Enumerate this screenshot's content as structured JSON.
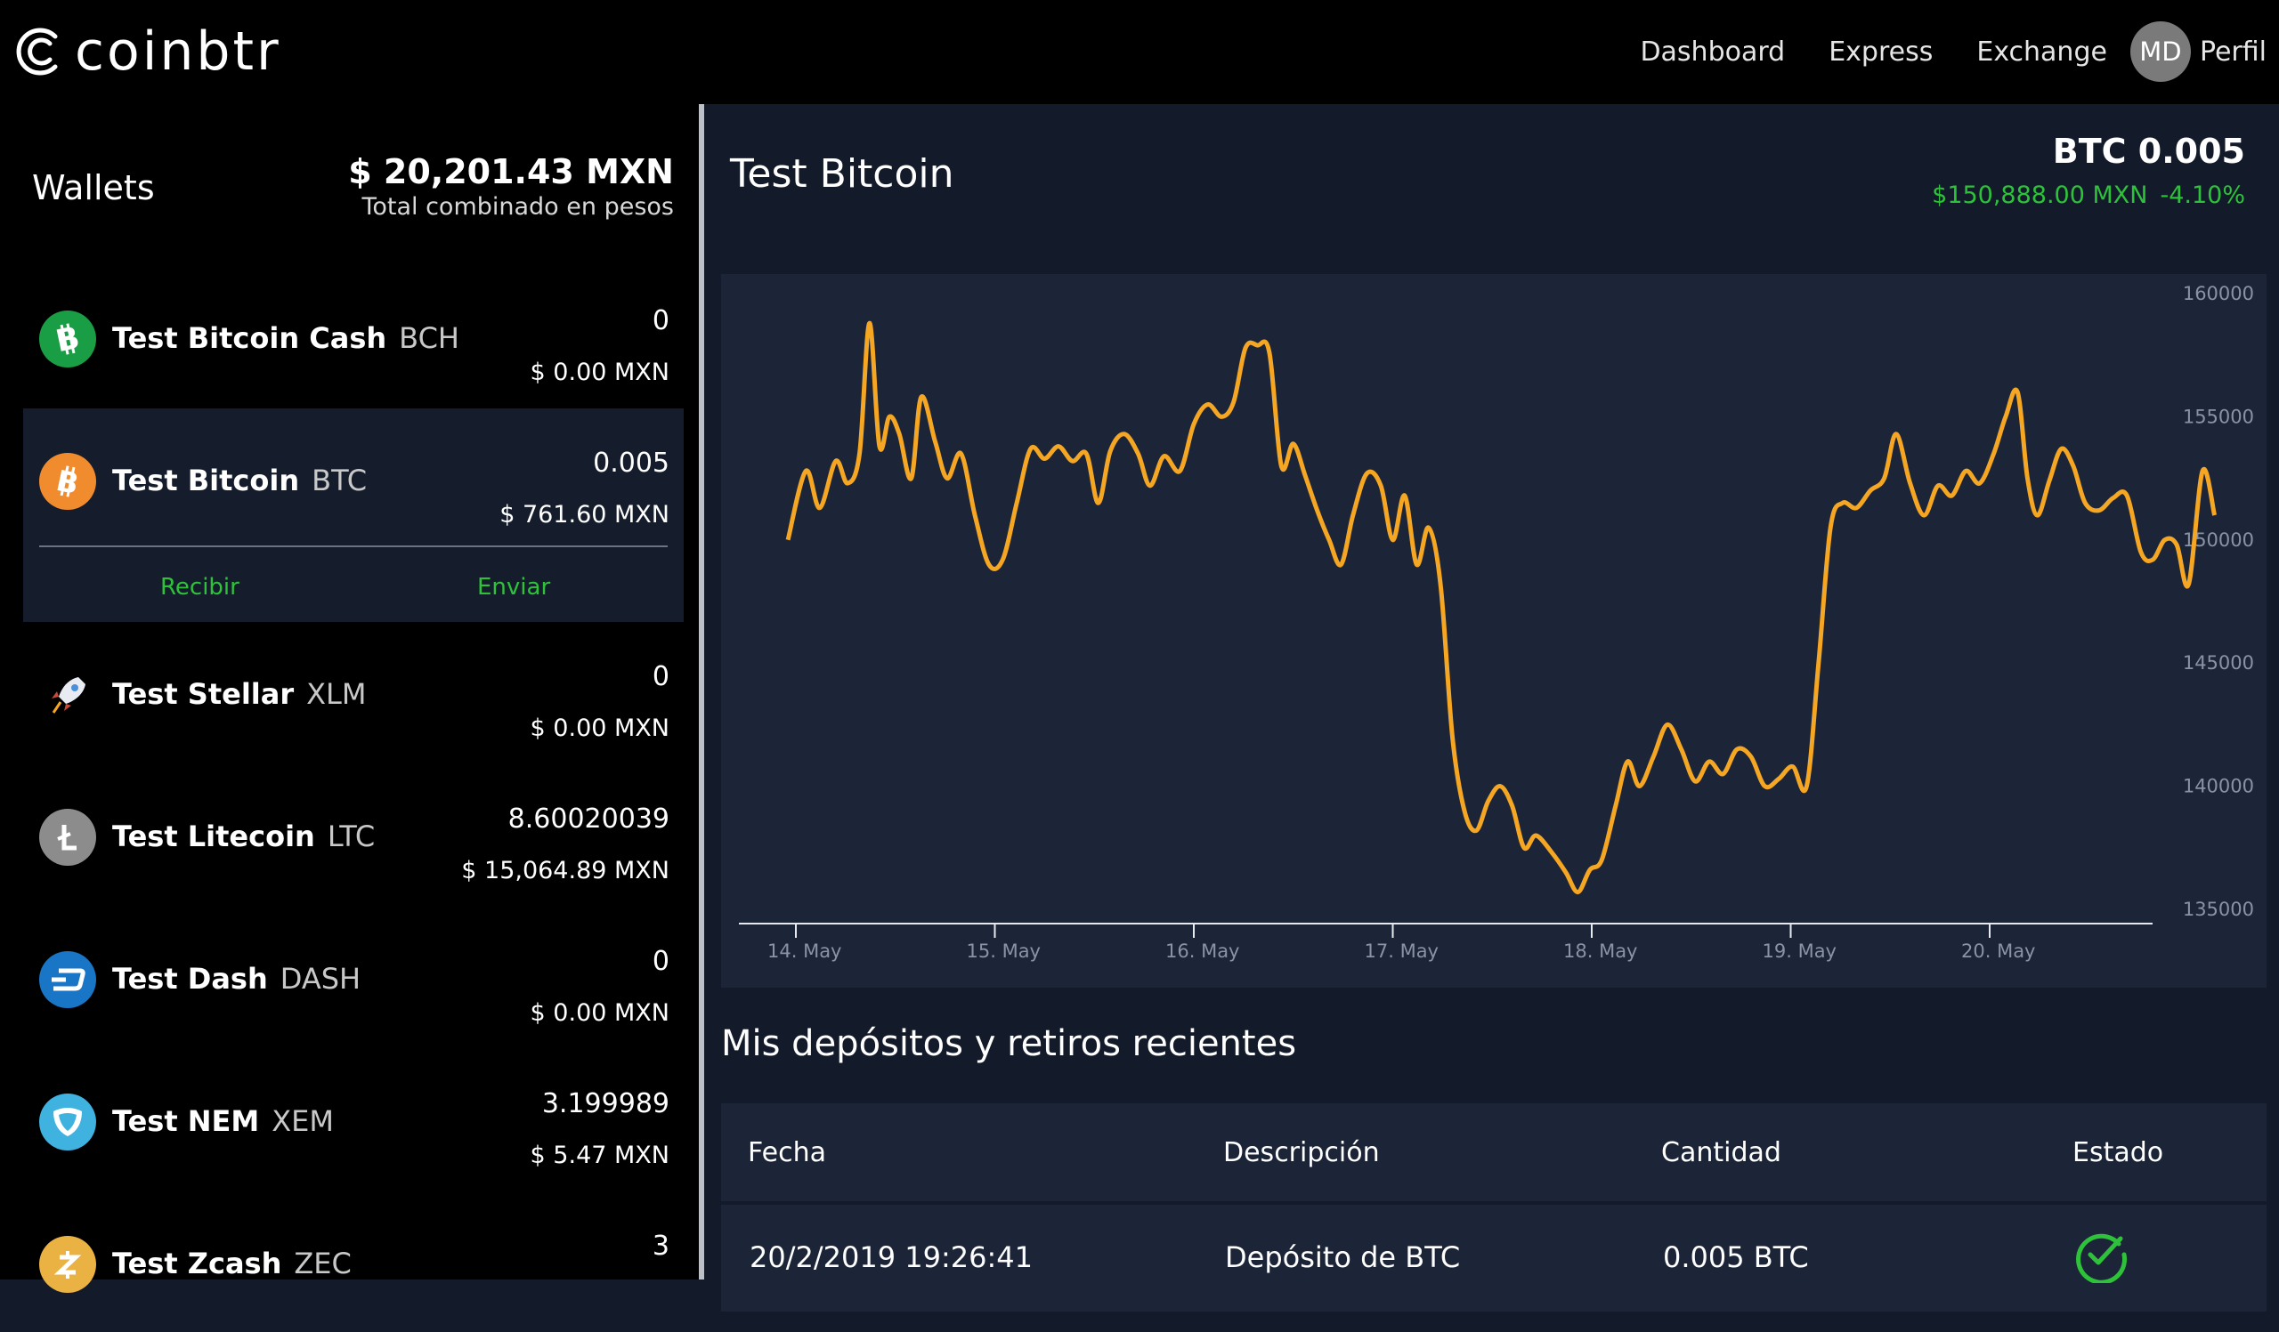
{
  "app": {
    "logo_text": "coinbtr"
  },
  "nav": {
    "items": [
      "Dashboard",
      "Express",
      "Exchange"
    ],
    "avatar_initials": "MD",
    "profile_label": "Perfil"
  },
  "sidebar": {
    "title": "Wallets",
    "total": "$ 20,201.43 MXN",
    "total_caption": "Total combinado en pesos",
    "wallets": [
      {
        "name": "Test Bitcoin Cash",
        "symbol": "BCH",
        "amount": "0",
        "fiat": "$ 0.00 MXN",
        "icon": "bitcoin-cash-icon",
        "color": "#1a9e45"
      },
      {
        "name": "Test Bitcoin",
        "symbol": "BTC",
        "amount": "0.005",
        "fiat": "$ 761.60 MXN",
        "icon": "bitcoin-icon",
        "color": "#f08c2e",
        "actions": [
          "Recibir",
          "Enviar"
        ]
      },
      {
        "name": "Test Stellar",
        "symbol": "XLM",
        "amount": "0",
        "fiat": "$ 0.00 MXN",
        "icon": "stellar-rocket-icon",
        "color": "#000000"
      },
      {
        "name": "Test Litecoin",
        "symbol": "LTC",
        "amount": "8.60020039",
        "fiat": "$ 15,064.89 MXN",
        "icon": "litecoin-icon",
        "color": "#8c8c8c"
      },
      {
        "name": "Test Dash",
        "symbol": "DASH",
        "amount": "0",
        "fiat": "$ 0.00 MXN",
        "icon": "dash-icon",
        "color": "#1976c6"
      },
      {
        "name": "Test NEM",
        "symbol": "XEM",
        "amount": "3.199989",
        "fiat": "$ 5.47 MXN",
        "icon": "nem-icon",
        "color": "#3fb2e0"
      },
      {
        "name": "Test Zcash",
        "symbol": "ZEC",
        "amount": "3",
        "fiat": "",
        "icon": "zcash-icon",
        "color": "#e9b243"
      }
    ]
  },
  "main": {
    "title": "Test Bitcoin",
    "coin_amount": "BTC 0.005",
    "coin_price": "$150,888.00 MXN",
    "coin_change": "-4.10%",
    "positive_color": "#2ec23a",
    "line_color": "#f5a623"
  },
  "chart_data": {
    "type": "line",
    "title": "",
    "xlabel": "",
    "ylabel": "",
    "ylim": [
      135000,
      160000
    ],
    "yticks": [
      160000,
      155000,
      150000,
      145000,
      140000,
      135000
    ],
    "xlim": [
      0,
      7.1
    ],
    "xticks": [
      0,
      1,
      2,
      3,
      4,
      5,
      6
    ],
    "xtick_labels": [
      "14. May",
      "15. May",
      "16. May",
      "17. May",
      "18. May",
      "19. May",
      "20. May"
    ],
    "grid": false,
    "series": [
      {
        "values": [
          [
            -0.04,
            150000
          ],
          [
            0.05,
            152800
          ],
          [
            0.12,
            151300
          ],
          [
            0.2,
            153200
          ],
          [
            0.26,
            152300
          ],
          [
            0.32,
            153500
          ],
          [
            0.37,
            158800
          ],
          [
            0.42,
            153800
          ],
          [
            0.47,
            155000
          ],
          [
            0.52,
            154300
          ],
          [
            0.58,
            152500
          ],
          [
            0.63,
            155800
          ],
          [
            0.7,
            154000
          ],
          [
            0.76,
            152500
          ],
          [
            0.83,
            153500
          ],
          [
            0.9,
            151000
          ],
          [
            0.97,
            149000
          ],
          [
            1.04,
            149200
          ],
          [
            1.11,
            151500
          ],
          [
            1.18,
            153700
          ],
          [
            1.25,
            153300
          ],
          [
            1.32,
            153800
          ],
          [
            1.39,
            153200
          ],
          [
            1.46,
            153500
          ],
          [
            1.52,
            151500
          ],
          [
            1.58,
            153600
          ],
          [
            1.65,
            154300
          ],
          [
            1.72,
            153500
          ],
          [
            1.78,
            152200
          ],
          [
            1.85,
            153400
          ],
          [
            1.93,
            152800
          ],
          [
            2.0,
            154700
          ],
          [
            2.07,
            155500
          ],
          [
            2.14,
            155000
          ],
          [
            2.2,
            155600
          ],
          [
            2.26,
            157800
          ],
          [
            2.32,
            157900
          ],
          [
            2.38,
            157600
          ],
          [
            2.44,
            153000
          ],
          [
            2.5,
            153900
          ],
          [
            2.56,
            152600
          ],
          [
            2.62,
            151200
          ],
          [
            2.68,
            150000
          ],
          [
            2.74,
            149000
          ],
          [
            2.8,
            151000
          ],
          [
            2.87,
            152700
          ],
          [
            2.94,
            152200
          ],
          [
            3.0,
            150000
          ],
          [
            3.06,
            151800
          ],
          [
            3.12,
            149000
          ],
          [
            3.18,
            150500
          ],
          [
            3.24,
            148200
          ],
          [
            3.3,
            142000
          ],
          [
            3.36,
            139000
          ],
          [
            3.42,
            138200
          ],
          [
            3.48,
            139400
          ],
          [
            3.54,
            140000
          ],
          [
            3.6,
            139200
          ],
          [
            3.66,
            137500
          ],
          [
            3.72,
            138000
          ],
          [
            3.8,
            137300
          ],
          [
            3.87,
            136500
          ],
          [
            3.93,
            135700
          ],
          [
            3.99,
            136600
          ],
          [
            4.05,
            137000
          ],
          [
            4.12,
            139200
          ],
          [
            4.18,
            141000
          ],
          [
            4.24,
            140000
          ],
          [
            4.31,
            141200
          ],
          [
            4.38,
            142500
          ],
          [
            4.45,
            141500
          ],
          [
            4.52,
            140200
          ],
          [
            4.59,
            141000
          ],
          [
            4.66,
            140500
          ],
          [
            4.73,
            141500
          ],
          [
            4.8,
            141200
          ],
          [
            4.87,
            140000
          ],
          [
            4.94,
            140300
          ],
          [
            5.01,
            140800
          ],
          [
            5.08,
            140000
          ],
          [
            5.14,
            145000
          ],
          [
            5.2,
            150500
          ],
          [
            5.26,
            151500
          ],
          [
            5.33,
            151300
          ],
          [
            5.4,
            152000
          ],
          [
            5.47,
            152500
          ],
          [
            5.53,
            154300
          ],
          [
            5.6,
            152300
          ],
          [
            5.67,
            151000
          ],
          [
            5.74,
            152200
          ],
          [
            5.81,
            151800
          ],
          [
            5.88,
            152800
          ],
          [
            5.95,
            152300
          ],
          [
            6.02,
            153500
          ],
          [
            6.08,
            155000
          ],
          [
            6.14,
            156000
          ],
          [
            6.19,
            152500
          ],
          [
            6.24,
            151000
          ],
          [
            6.3,
            152400
          ],
          [
            6.36,
            153700
          ],
          [
            6.42,
            153000
          ],
          [
            6.48,
            151500
          ],
          [
            6.55,
            151200
          ],
          [
            6.62,
            151700
          ],
          [
            6.69,
            151800
          ],
          [
            6.76,
            149500
          ],
          [
            6.82,
            149200
          ],
          [
            6.88,
            150000
          ],
          [
            6.94,
            149800
          ],
          [
            7.0,
            148200
          ],
          [
            7.07,
            152800
          ],
          [
            7.13,
            151000
          ]
        ]
      }
    ]
  },
  "transactions": {
    "section_title": "Mis depósitos y retiros recientes",
    "headers": [
      "Fecha",
      "Descripción",
      "Cantidad",
      "Estado"
    ],
    "rows": [
      {
        "date": "20/2/2019 19:26:41",
        "description": "Depósito de BTC",
        "amount": "0.005 BTC",
        "status_icon": "check-circle-icon"
      }
    ]
  }
}
